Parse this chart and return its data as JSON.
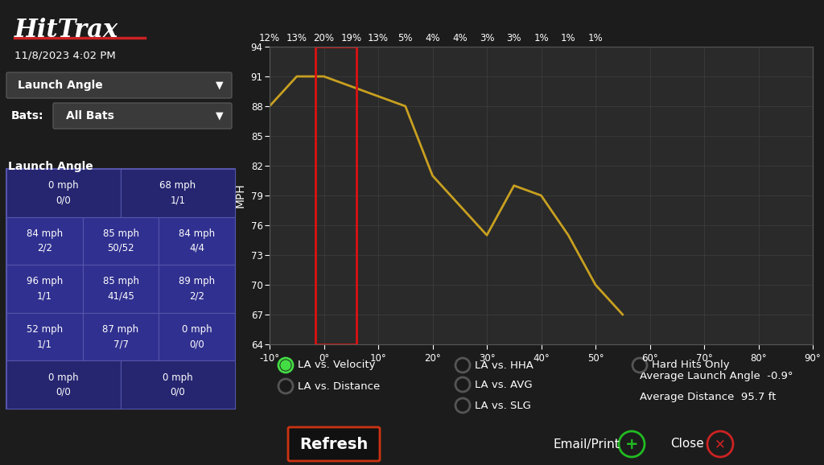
{
  "bg_color": "#1c1c1c",
  "chart_bg": "#2a2a2a",
  "bottom_bg": "#111111",
  "title_text": "HitTrax",
  "datetime_text": "11/8/2023 4:02 PM",
  "dropdown1": "Launch Angle",
  "dropdown2": "All Bats",
  "table_label": "Launch Angle",
  "table_cells": [
    [
      "0 mph\n0/0",
      "",
      "68 mph\n1/1"
    ],
    [
      "84 mph\n2/2",
      "85 mph\n50/52",
      "84 mph\n4/4"
    ],
    [
      "96 mph\n1/1",
      "85 mph\n41/45",
      "89 mph\n2/2"
    ],
    [
      "52 mph\n1/1",
      "87 mph\n7/7",
      "0 mph\n0/0"
    ],
    [
      "0 mph\n0/0",
      "",
      "0 mph\n0/0"
    ]
  ],
  "x_values": [
    -10,
    -5,
    0,
    5,
    10,
    15,
    20,
    25,
    30,
    35,
    40,
    45,
    50,
    55
  ],
  "y_values": [
    88,
    91,
    91,
    90,
    89,
    88,
    81,
    78,
    75,
    80,
    79,
    75,
    70,
    67
  ],
  "line_color": "#c8a020",
  "x_ticks": [
    -10,
    0,
    10,
    20,
    30,
    40,
    50,
    60,
    70,
    80,
    90
  ],
  "x_tick_labels": [
    "-10°",
    "0°",
    "10°",
    "20°",
    "30°",
    "40°",
    "50°",
    "60°",
    "70°",
    "80°",
    "90°"
  ],
  "y_ticks": [
    64,
    67,
    70,
    73,
    76,
    79,
    82,
    85,
    88,
    91,
    94
  ],
  "y_label": "MPH",
  "percent_labels": [
    "12%",
    "13%",
    "20%",
    "19%",
    "13%",
    "5%",
    "4%",
    "4%",
    "3%",
    "3%",
    "1%",
    "1%",
    "1%"
  ],
  "percent_x_positions": [
    -10,
    -5,
    0,
    5,
    10,
    15,
    20,
    25,
    30,
    35,
    40,
    45,
    50
  ],
  "legend_labels": [
    "LA vs. Velocity",
    "LA vs. Distance",
    "LA vs. HHA",
    "LA vs. AVG",
    "LA vs. SLG",
    "Hard Hits Only"
  ],
  "legend_active": [
    true,
    false,
    false,
    false,
    false,
    false
  ],
  "avg_launch_angle": "Average Launch Angle  -0.9°",
  "avg_distance": "Average Distance  95.7 ft",
  "refresh_label": "Refresh",
  "email_print_label": "Email/Print",
  "close_label": "Close",
  "grid_color": "#444444",
  "text_color": "#ffffff",
  "table_bg": "#252570",
  "table_inner_bg": "#303090",
  "table_border": "#5555aa",
  "active_green": "#44dd44",
  "refresh_border": "#cc3311",
  "email_green": "#22bb22",
  "close_red": "#cc2222"
}
